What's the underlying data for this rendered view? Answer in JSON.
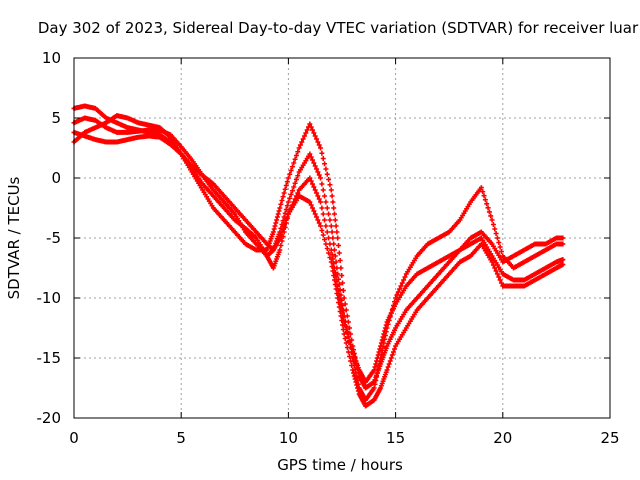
{
  "chart_data": {
    "type": "scatter",
    "title": "Day 302 of 2023, Sidereal Day-to-day VTEC variation (SDTVAR) for receiver luar",
    "xlabel": "GPS time / hours",
    "ylabel": "SDTVAR / TECUs",
    "xlim": [
      0,
      25
    ],
    "ylim": [
      -20,
      10
    ],
    "xticks": [
      0,
      5,
      10,
      15,
      20,
      25
    ],
    "yticks": [
      -20,
      -15,
      -10,
      -5,
      0,
      5,
      10
    ],
    "grid": true,
    "legend": "none",
    "marker": "plus",
    "color": "#ff0000",
    "series": [
      {
        "x": [
          0.0,
          0.5,
          1.0,
          1.5,
          2.0,
          2.5,
          3.0,
          3.5,
          4.0,
          4.5,
          5.0,
          5.5,
          6.0,
          6.5,
          7.0,
          7.5,
          8.0,
          8.5,
          9.0,
          9.3,
          9.6,
          10.0,
          10.5,
          11.0,
          11.5,
          12.0,
          12.3,
          12.6,
          13.0,
          13.3,
          13.6,
          14.0,
          14.3,
          14.6,
          15.0,
          15.5,
          16.0,
          16.5,
          17.0,
          17.5,
          18.0,
          18.5,
          19.0,
          19.5,
          20.0,
          20.5,
          21.0,
          21.5,
          22.0,
          22.5,
          22.8
        ],
        "y": [
          5.8,
          6.0,
          5.8,
          5.0,
          4.6,
          4.2,
          4.0,
          3.8,
          3.6,
          3.0,
          2.0,
          0.8,
          -0.5,
          -1.5,
          -2.5,
          -3.5,
          -4.2,
          -5.0,
          -6.5,
          -7.5,
          -6.0,
          -3.0,
          -1.0,
          0.0,
          -2.0,
          -6.0,
          -9.0,
          -12.0,
          -14.5,
          -16.0,
          -17.0,
          -16.0,
          -14.0,
          -12.0,
          -10.5,
          -9.0,
          -8.0,
          -7.5,
          -7.0,
          -6.5,
          -6.0,
          -5.5,
          -5.0,
          -6.5,
          -8.0,
          -8.5,
          -8.5,
          -8.0,
          -7.5,
          -7.0,
          -6.8
        ]
      },
      {
        "x": [
          0.0,
          0.5,
          1.0,
          1.5,
          2.0,
          2.5,
          3.0,
          3.5,
          4.0,
          4.5,
          5.0,
          5.5,
          6.0,
          6.5,
          7.0,
          7.5,
          8.0,
          8.5,
          9.0,
          9.3,
          9.6,
          10.0,
          10.5,
          11.0,
          11.5,
          12.0,
          12.3,
          12.6,
          13.0,
          13.3,
          13.6,
          14.0,
          14.3,
          14.6,
          15.0,
          15.5,
          16.0,
          16.5,
          17.0,
          17.5,
          18.0,
          18.5,
          19.0,
          19.5,
          20.0,
          20.5,
          21.0,
          21.5,
          22.0,
          22.5,
          22.8
        ],
        "y": [
          4.6,
          5.0,
          4.8,
          4.2,
          3.8,
          3.8,
          3.9,
          4.0,
          4.0,
          3.6,
          2.6,
          1.5,
          0.2,
          -1.0,
          -2.0,
          -3.0,
          -4.5,
          -5.5,
          -6.5,
          -6.0,
          -4.5,
          -2.0,
          0.5,
          2.0,
          0.0,
          -4.0,
          -8.0,
          -11.5,
          -15.0,
          -17.5,
          -18.5,
          -17.5,
          -15.0,
          -12.5,
          -10.0,
          -8.0,
          -6.5,
          -5.5,
          -5.0,
          -4.5,
          -3.5,
          -2.0,
          -0.8,
          -3.5,
          -6.5,
          -7.5,
          -7.0,
          -6.5,
          -6.0,
          -5.5,
          -5.5
        ]
      },
      {
        "x": [
          0.0,
          0.5,
          1.0,
          1.5,
          2.0,
          2.5,
          3.0,
          3.5,
          4.0,
          4.5,
          5.0,
          5.5,
          6.0,
          6.5,
          7.0,
          7.5,
          8.0,
          8.5,
          9.0,
          9.3,
          9.6,
          10.0,
          10.5,
          11.0,
          11.5,
          12.0,
          12.3,
          12.6,
          13.0,
          13.3,
          13.6,
          14.0,
          14.3,
          14.6,
          15.0,
          15.5,
          16.0,
          16.5,
          17.0,
          17.5,
          18.0,
          18.5,
          19.0,
          19.5,
          20.0,
          20.5,
          21.0,
          21.5,
          22.0,
          22.5,
          22.8
        ],
        "y": [
          3.8,
          3.5,
          3.2,
          3.0,
          3.0,
          3.2,
          3.4,
          3.5,
          3.4,
          2.8,
          2.0,
          1.0,
          0.2,
          -0.5,
          -1.5,
          -2.5,
          -3.5,
          -4.5,
          -5.5,
          -6.0,
          -5.0,
          -3.0,
          -1.5,
          -2.0,
          -4.0,
          -7.0,
          -10.0,
          -13.0,
          -16.0,
          -18.0,
          -19.0,
          -18.5,
          -17.5,
          -16.0,
          -14.0,
          -12.5,
          -11.0,
          -10.0,
          -9.0,
          -8.0,
          -7.0,
          -6.5,
          -5.5,
          -7.0,
          -9.0,
          -9.0,
          -9.0,
          -8.5,
          -8.0,
          -7.5,
          -7.2
        ]
      },
      {
        "x": [
          0.0,
          0.5,
          1.0,
          1.5,
          2.0,
          2.5,
          3.0,
          3.5,
          4.0,
          4.5,
          5.0,
          5.5,
          6.0,
          6.5,
          7.0,
          7.5,
          8.0,
          8.5,
          9.0,
          9.3,
          9.6,
          10.0,
          10.5,
          11.0,
          11.5,
          12.0,
          12.3,
          12.6,
          13.0,
          13.3,
          13.6,
          14.0,
          14.3,
          14.6,
          15.0,
          15.5,
          16.0,
          16.5,
          17.0,
          17.5,
          18.0,
          18.5,
          19.0,
          19.5,
          20.0,
          20.5,
          21.0,
          21.5,
          22.0,
          22.5,
          22.8
        ],
        "y": [
          3.0,
          3.8,
          4.2,
          4.6,
          5.2,
          5.0,
          4.6,
          4.4,
          4.2,
          3.4,
          2.0,
          0.5,
          -1.0,
          -2.5,
          -3.5,
          -4.5,
          -5.5,
          -6.0,
          -6.0,
          -4.5,
          -2.5,
          0.0,
          2.5,
          4.5,
          2.5,
          -1.0,
          -5.0,
          -10.0,
          -14.0,
          -16.5,
          -17.5,
          -17.0,
          -15.5,
          -14.0,
          -12.5,
          -11.0,
          -10.0,
          -9.0,
          -8.0,
          -7.0,
          -6.0,
          -5.0,
          -4.5,
          -5.5,
          -7.0,
          -6.5,
          -6.0,
          -5.5,
          -5.5,
          -5.0,
          -5.0
        ]
      }
    ]
  }
}
